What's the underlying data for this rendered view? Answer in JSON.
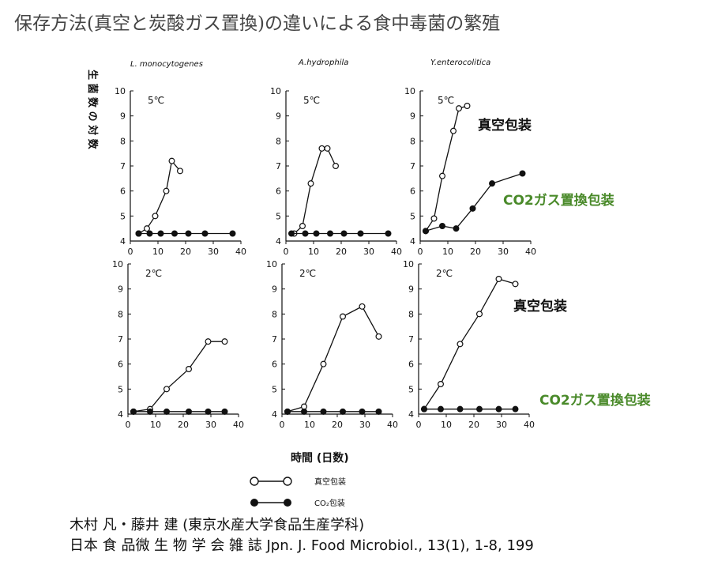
{
  "title": "保存方法(真空と炭酸ガス置換)の違いによる食中毒菌の繁殖",
  "ylabel": "生 菌 数 の 対 数",
  "xlabel": "時間 (日数)",
  "organisms": [
    "L. monocytogenes",
    "A.hydrophila",
    "Y.enterocolitica"
  ],
  "annotations": {
    "vacuum": "真空包装",
    "co2": "CO2ガス置換包装",
    "color_vacuum": "#111111",
    "color_co2": "#4a8a2a"
  },
  "legend": {
    "vacuum": "真空包装",
    "co2": "CO₂包装"
  },
  "citation": {
    "line1": "木村 凡・藤井 建 (東京水産大学食品生産学科)",
    "line2": "日本 食 品微 生 物 学 会 雑 誌 Jpn. J. Food Microbiol., 13(1), 1-8, 199"
  },
  "chart_data": [
    {
      "type": "line",
      "organism": "L. monocytogenes",
      "temperature": "5℃",
      "xlim": [
        0,
        40
      ],
      "ylim": [
        4,
        10
      ],
      "xticks": [
        0,
        10,
        20,
        30,
        40
      ],
      "yticks": [
        4,
        5,
        6,
        7,
        8,
        9,
        10
      ],
      "series": [
        {
          "name": "真空包装",
          "marker": "open",
          "x": [
            3,
            6,
            9,
            13,
            15,
            18
          ],
          "y": [
            4.3,
            4.5,
            5.0,
            6.0,
            7.2,
            6.8
          ]
        },
        {
          "name": "CO₂包装",
          "marker": "filled",
          "x": [
            3,
            7,
            11,
            16,
            21,
            27,
            37
          ],
          "y": [
            4.3,
            4.3,
            4.3,
            4.3,
            4.3,
            4.3,
            4.3
          ]
        }
      ]
    },
    {
      "type": "line",
      "organism": "A.hydrophila",
      "temperature": "5℃",
      "xlim": [
        0,
        40
      ],
      "ylim": [
        4,
        10
      ],
      "xticks": [
        0,
        10,
        20,
        30,
        40
      ],
      "yticks": [
        4,
        5,
        6,
        7,
        8,
        9,
        10
      ],
      "series": [
        {
          "name": "真空包装",
          "marker": "open",
          "x": [
            3,
            6,
            9,
            13,
            15,
            18
          ],
          "y": [
            4.3,
            4.6,
            6.3,
            7.7,
            7.7,
            7.0
          ]
        },
        {
          "name": "CO₂包装",
          "marker": "filled",
          "x": [
            2,
            7,
            11,
            16,
            21,
            27,
            37
          ],
          "y": [
            4.3,
            4.3,
            4.3,
            4.3,
            4.3,
            4.3,
            4.3
          ]
        }
      ]
    },
    {
      "type": "line",
      "organism": "Y.enterocolitica",
      "temperature": "5℃",
      "xlim": [
        0,
        40
      ],
      "ylim": [
        4,
        10
      ],
      "xticks": [
        0,
        10,
        20,
        30,
        40
      ],
      "yticks": [
        4,
        5,
        6,
        7,
        8,
        9,
        10
      ],
      "series": [
        {
          "name": "真空包装",
          "marker": "open",
          "x": [
            2,
            5,
            8,
            12,
            14,
            17
          ],
          "y": [
            4.4,
            4.9,
            6.6,
            8.4,
            9.3,
            9.4
          ]
        },
        {
          "name": "CO₂包装",
          "marker": "filled",
          "x": [
            2,
            8,
            13,
            19,
            26,
            37
          ],
          "y": [
            4.4,
            4.6,
            4.5,
            5.3,
            6.3,
            6.7
          ]
        }
      ]
    },
    {
      "type": "line",
      "organism": "L. monocytogenes",
      "temperature": "2℃",
      "xlim": [
        0,
        40
      ],
      "ylim": [
        4,
        10
      ],
      "xticks": [
        0,
        10,
        20,
        30,
        40
      ],
      "yticks": [
        4,
        5,
        6,
        7,
        8,
        9,
        10
      ],
      "series": [
        {
          "name": "真空包装",
          "marker": "open",
          "x": [
            2,
            8,
            14,
            22,
            29,
            35
          ],
          "y": [
            4.1,
            4.2,
            5.0,
            5.8,
            6.9,
            6.9
          ]
        },
        {
          "name": "CO₂包装",
          "marker": "filled",
          "x": [
            2,
            8,
            14,
            22,
            29,
            35
          ],
          "y": [
            4.1,
            4.1,
            4.1,
            4.1,
            4.1,
            4.1
          ]
        }
      ]
    },
    {
      "type": "line",
      "organism": "A.hydrophila",
      "temperature": "2℃",
      "xlim": [
        0,
        40
      ],
      "ylim": [
        4,
        10
      ],
      "xticks": [
        0,
        10,
        20,
        30,
        40
      ],
      "yticks": [
        4,
        5,
        6,
        7,
        8,
        9,
        10
      ],
      "series": [
        {
          "name": "真空包装",
          "marker": "open",
          "x": [
            2,
            8,
            15,
            22,
            29,
            35
          ],
          "y": [
            4.1,
            4.3,
            6.0,
            7.9,
            8.3,
            7.1
          ]
        },
        {
          "name": "CO₂包装",
          "marker": "filled",
          "x": [
            2,
            8,
            15,
            22,
            29,
            35
          ],
          "y": [
            4.1,
            4.1,
            4.1,
            4.1,
            4.1,
            4.1
          ]
        }
      ]
    },
    {
      "type": "line",
      "organism": "Y.enterocolitica",
      "temperature": "2℃",
      "xlim": [
        0,
        40
      ],
      "ylim": [
        4,
        10
      ],
      "xticks": [
        0,
        10,
        20,
        30,
        40
      ],
      "yticks": [
        4,
        5,
        6,
        7,
        8,
        9,
        10
      ],
      "series": [
        {
          "name": "真空包装",
          "marker": "open",
          "x": [
            2,
            8,
            15,
            22,
            29,
            35
          ],
          "y": [
            4.2,
            5.2,
            6.8,
            8.0,
            9.4,
            9.2
          ]
        },
        {
          "name": "CO₂包装",
          "marker": "filled",
          "x": [
            2,
            8,
            15,
            22,
            29,
            35
          ],
          "y": [
            4.2,
            4.2,
            4.2,
            4.2,
            4.2,
            4.2
          ]
        }
      ]
    }
  ]
}
